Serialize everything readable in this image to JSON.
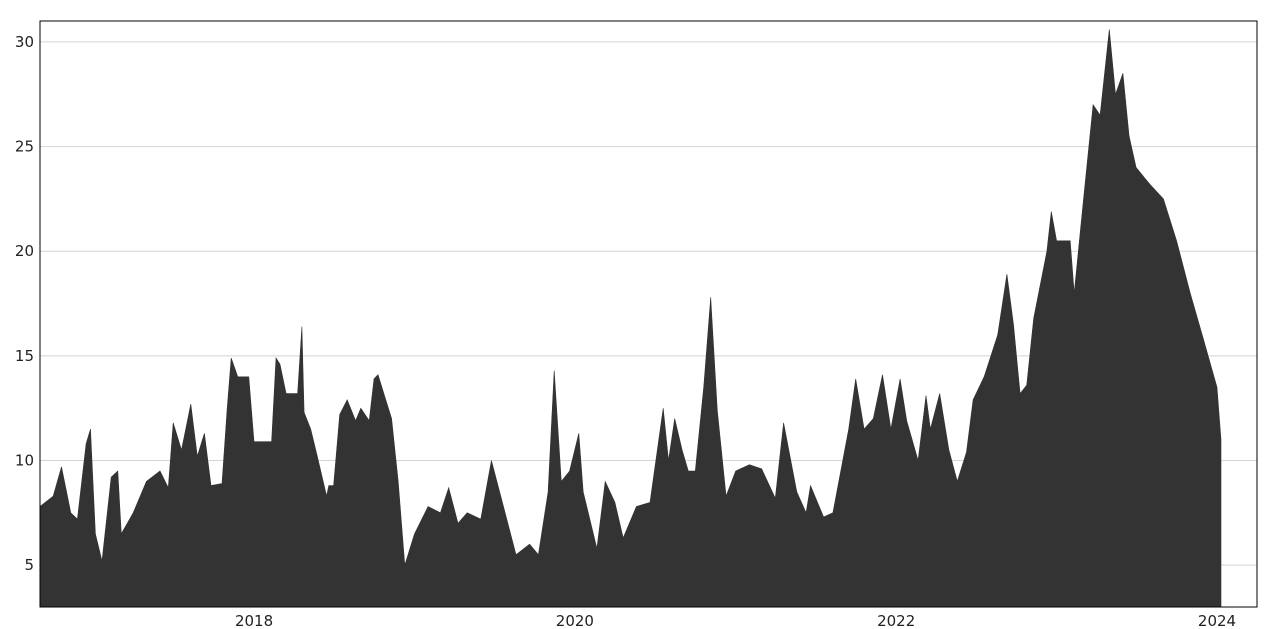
{
  "chart_data": {
    "type": "area",
    "title": "",
    "xlabel": "",
    "ylabel": "",
    "x_ticks": [
      {
        "date": "2018-01-01",
        "label": "2018"
      },
      {
        "date": "2020-01-01",
        "label": "2020"
      },
      {
        "date": "2022-01-01",
        "label": "2022"
      },
      {
        "date": "2024-01-01",
        "label": "2024"
      }
    ],
    "y_ticks": [
      {
        "value": 5,
        "label": "5"
      },
      {
        "value": 10,
        "label": "10"
      },
      {
        "value": 15,
        "label": "15"
      },
      {
        "value": 20,
        "label": "20"
      },
      {
        "value": 25,
        "label": "25"
      },
      {
        "value": 30,
        "label": "30"
      }
    ],
    "xlim": [
      "2016-09-01",
      "2024-04-01"
    ],
    "ylim": [
      3.0,
      31.0
    ],
    "grid": "horizontal",
    "legend": "none",
    "color": "#333333",
    "series": [
      {
        "values": [
          [
            "2016-09-01",
            7.8
          ],
          [
            "2016-10-01",
            8.3
          ],
          [
            "2016-10-20",
            9.7
          ],
          [
            "2016-11-10",
            7.5
          ],
          [
            "2016-11-25",
            7.2
          ],
          [
            "2016-12-15",
            10.8
          ],
          [
            "2016-12-25",
            11.5
          ],
          [
            "2017-01-05",
            6.5
          ],
          [
            "2017-01-20",
            5.2
          ],
          [
            "2017-02-10",
            9.2
          ],
          [
            "2017-02-25",
            9.5
          ],
          [
            "2017-03-05",
            6.5
          ],
          [
            "2017-04-01",
            7.5
          ],
          [
            "2017-05-01",
            9.0
          ],
          [
            "2017-06-01",
            9.5
          ],
          [
            "2017-06-20",
            8.7
          ],
          [
            "2017-07-01",
            11.8
          ],
          [
            "2017-07-20",
            10.5
          ],
          [
            "2017-08-10",
            12.7
          ],
          [
            "2017-08-25",
            10.2
          ],
          [
            "2017-09-10",
            11.3
          ],
          [
            "2017-09-25",
            8.8
          ],
          [
            "2017-10-20",
            8.9
          ],
          [
            "2017-11-01",
            12.5
          ],
          [
            "2017-11-10",
            14.9
          ],
          [
            "2017-11-25",
            14.0
          ],
          [
            "2017-12-20",
            14.0
          ],
          [
            "2018-01-01",
            10.9
          ],
          [
            "2018-02-10",
            10.9
          ],
          [
            "2018-02-20",
            14.9
          ],
          [
            "2018-03-01",
            14.6
          ],
          [
            "2018-03-15",
            13.2
          ],
          [
            "2018-04-10",
            13.2
          ],
          [
            "2018-04-20",
            16.4
          ],
          [
            "2018-04-25",
            12.3
          ],
          [
            "2018-05-10",
            11.5
          ],
          [
            "2018-05-25",
            10.2
          ],
          [
            "2018-06-15",
            8.3
          ],
          [
            "2018-06-20",
            8.8
          ],
          [
            "2018-07-01",
            8.8
          ],
          [
            "2018-07-15",
            12.2
          ],
          [
            "2018-08-01",
            12.9
          ],
          [
            "2018-08-20",
            11.9
          ],
          [
            "2018-09-01",
            12.5
          ],
          [
            "2018-09-20",
            11.9
          ],
          [
            "2018-10-01",
            13.9
          ],
          [
            "2018-10-10",
            14.1
          ],
          [
            "2018-11-10",
            12.0
          ],
          [
            "2018-11-25",
            9.0
          ],
          [
            "2018-12-10",
            5.0
          ],
          [
            "2019-01-01",
            6.5
          ],
          [
            "2019-02-01",
            7.8
          ],
          [
            "2019-03-01",
            7.5
          ],
          [
            "2019-03-20",
            8.7
          ],
          [
            "2019-04-10",
            7.0
          ],
          [
            "2019-05-01",
            7.5
          ],
          [
            "2019-06-01",
            7.2
          ],
          [
            "2019-06-25",
            10.0
          ],
          [
            "2019-07-20",
            8.0
          ],
          [
            "2019-08-20",
            5.5
          ],
          [
            "2019-09-20",
            6.0
          ],
          [
            "2019-10-10",
            5.5
          ],
          [
            "2019-11-01",
            8.5
          ],
          [
            "2019-11-15",
            14.3
          ],
          [
            "2019-12-01",
            9.0
          ],
          [
            "2019-12-20",
            9.5
          ],
          [
            "2020-01-10",
            11.3
          ],
          [
            "2020-01-20",
            8.5
          ],
          [
            "2020-02-20",
            5.8
          ],
          [
            "2020-03-10",
            9.0
          ],
          [
            "2020-04-01",
            8.0
          ],
          [
            "2020-04-20",
            6.3
          ],
          [
            "2020-05-20",
            7.8
          ],
          [
            "2020-06-20",
            8.0
          ],
          [
            "2020-07-20",
            12.5
          ],
          [
            "2020-08-01",
            10.0
          ],
          [
            "2020-08-15",
            12.0
          ],
          [
            "2020-09-01",
            10.5
          ],
          [
            "2020-09-15",
            9.5
          ],
          [
            "2020-10-01",
            9.5
          ],
          [
            "2020-10-20",
            13.5
          ],
          [
            "2020-11-05",
            17.8
          ],
          [
            "2020-11-20",
            12.4
          ],
          [
            "2020-12-10",
            8.3
          ],
          [
            "2021-01-01",
            9.5
          ],
          [
            "2021-02-01",
            9.8
          ],
          [
            "2021-03-01",
            9.6
          ],
          [
            "2021-04-01",
            8.2
          ],
          [
            "2021-04-20",
            11.8
          ],
          [
            "2021-05-20",
            8.5
          ],
          [
            "2021-06-10",
            7.5
          ],
          [
            "2021-06-20",
            8.8
          ],
          [
            "2021-07-20",
            7.3
          ],
          [
            "2021-08-10",
            7.5
          ],
          [
            "2021-09-15",
            11.5
          ],
          [
            "2021-10-01",
            13.9
          ],
          [
            "2021-10-20",
            11.5
          ],
          [
            "2021-11-10",
            12.0
          ],
          [
            "2021-12-01",
            14.1
          ],
          [
            "2021-12-20",
            11.5
          ],
          [
            "2022-01-10",
            13.9
          ],
          [
            "2022-01-25",
            11.9
          ],
          [
            "2022-02-20",
            10.0
          ],
          [
            "2022-03-10",
            13.1
          ],
          [
            "2022-03-20",
            11.5
          ],
          [
            "2022-04-10",
            13.2
          ],
          [
            "2022-05-01",
            10.5
          ],
          [
            "2022-05-20",
            9.0
          ],
          [
            "2022-06-10",
            10.4
          ],
          [
            "2022-06-25",
            12.9
          ],
          [
            "2022-07-20",
            14.0
          ],
          [
            "2022-08-20",
            16.0
          ],
          [
            "2022-09-10",
            18.9
          ],
          [
            "2022-09-25",
            16.5
          ],
          [
            "2022-10-10",
            13.2
          ],
          [
            "2022-10-25",
            13.6
          ],
          [
            "2022-11-10",
            16.8
          ],
          [
            "2022-12-10",
            20.0
          ],
          [
            "2022-12-20",
            21.9
          ],
          [
            "2023-01-01",
            20.5
          ],
          [
            "2023-02-01",
            20.5
          ],
          [
            "2023-02-10",
            18.0
          ],
          [
            "2023-03-01",
            22.0
          ],
          [
            "2023-03-25",
            27.0
          ],
          [
            "2023-04-10",
            26.5
          ],
          [
            "2023-05-01",
            30.6
          ],
          [
            "2023-05-15",
            27.5
          ],
          [
            "2023-06-01",
            28.5
          ],
          [
            "2023-06-15",
            25.5
          ],
          [
            "2023-07-01",
            24.0
          ],
          [
            "2023-08-01",
            23.2
          ],
          [
            "2023-09-01",
            22.5
          ],
          [
            "2023-10-01",
            20.5
          ],
          [
            "2023-11-01",
            18.0
          ],
          [
            "2023-12-01",
            15.8
          ],
          [
            "2024-01-01",
            13.5
          ],
          [
            "2024-01-10",
            11.0
          ]
        ]
      }
    ]
  }
}
